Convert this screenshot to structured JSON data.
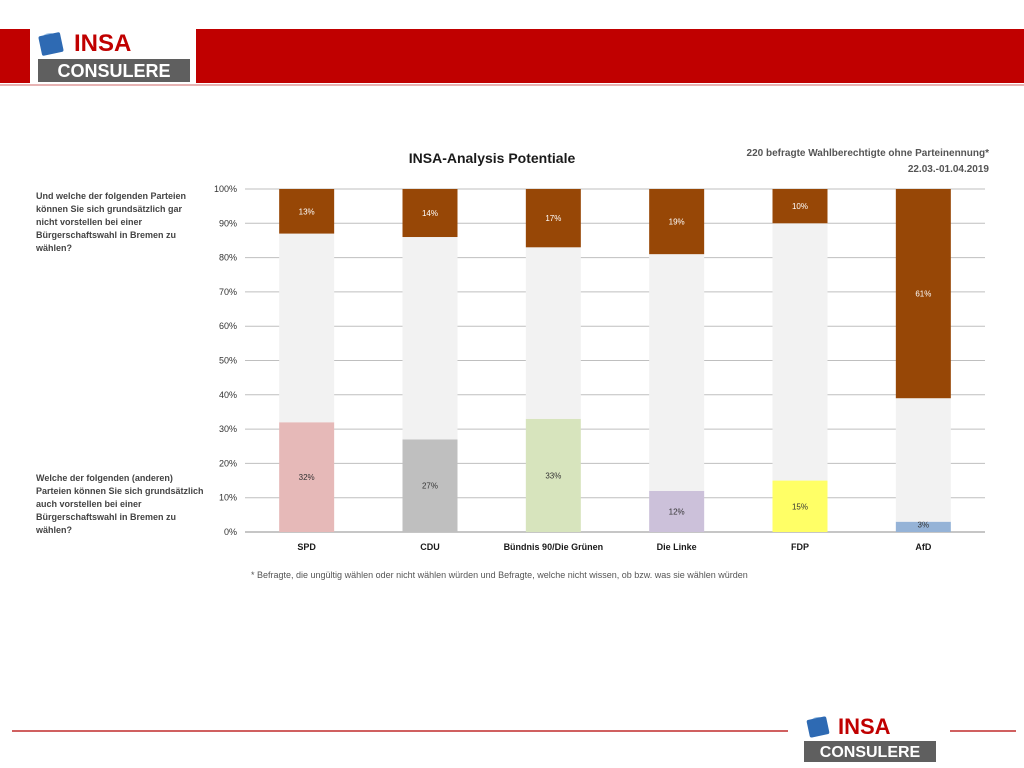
{
  "logo": {
    "top_word": "INSA",
    "bottom_word": "CONSULERE"
  },
  "colors": {
    "header_red": "#c00000",
    "logo_blue": "#2e6ab3",
    "logo_grey": "#5f5f5f",
    "bar_top": "#974706",
    "bar_middle": "#f2f2f2",
    "grid": "#bfbfbf"
  },
  "source": {
    "line1": "220 befragte Wahlberechtigte ohne Parteinennung*",
    "line2": "22.03.-01.04.2019"
  },
  "questions": {
    "top": "Und welche der folgenden Parteien können Sie sich grundsätzlich gar nicht vorstellen bei einer Bürgerschaftswahl in Bremen zu wählen?",
    "bottom": "Welche der folgenden (anderen) Parteien können Sie sich grundsätzlich auch vorstellen bei einer Bürgerschaftswahl in Bremen zu wählen?"
  },
  "footnote": "* Befragte, die ungültig wählen oder nicht wählen würden und Befragte, welche nicht wissen, ob bzw. was sie wählen würden",
  "chart_data": {
    "type": "bar",
    "stacked": true,
    "title": "INSA-Analysis Potentiale",
    "categories": [
      "SPD",
      "CDU",
      "Bündnis 90/Die Grünen",
      "Die Linke",
      "FDP",
      "AfD"
    ],
    "ylim": [
      0,
      100
    ],
    "y_ticks": [
      "0%",
      "10%",
      "20%",
      "30%",
      "40%",
      "50%",
      "60%",
      "70%",
      "80%",
      "90%",
      "100%"
    ],
    "grid": true,
    "series": [
      {
        "values": [
          32,
          27,
          33,
          12,
          15,
          3
        ],
        "labels": [
          "32%",
          "27%",
          "33%",
          "12%",
          "15%",
          "3%"
        ],
        "colors": [
          "#e6b9b8",
          "#bfbfbf",
          "#d7e4bd",
          "#ccc1da",
          "#ffff66",
          "#95b3d7"
        ]
      },
      {
        "values": [
          55,
          59,
          50,
          69,
          75,
          36
        ],
        "color": "#f2f2f2"
      },
      {
        "values": [
          13,
          14,
          17,
          19,
          10,
          61
        ],
        "labels": [
          "13%",
          "14%",
          "17%",
          "19%",
          "10%",
          "61%"
        ],
        "color": "#974706"
      }
    ]
  }
}
